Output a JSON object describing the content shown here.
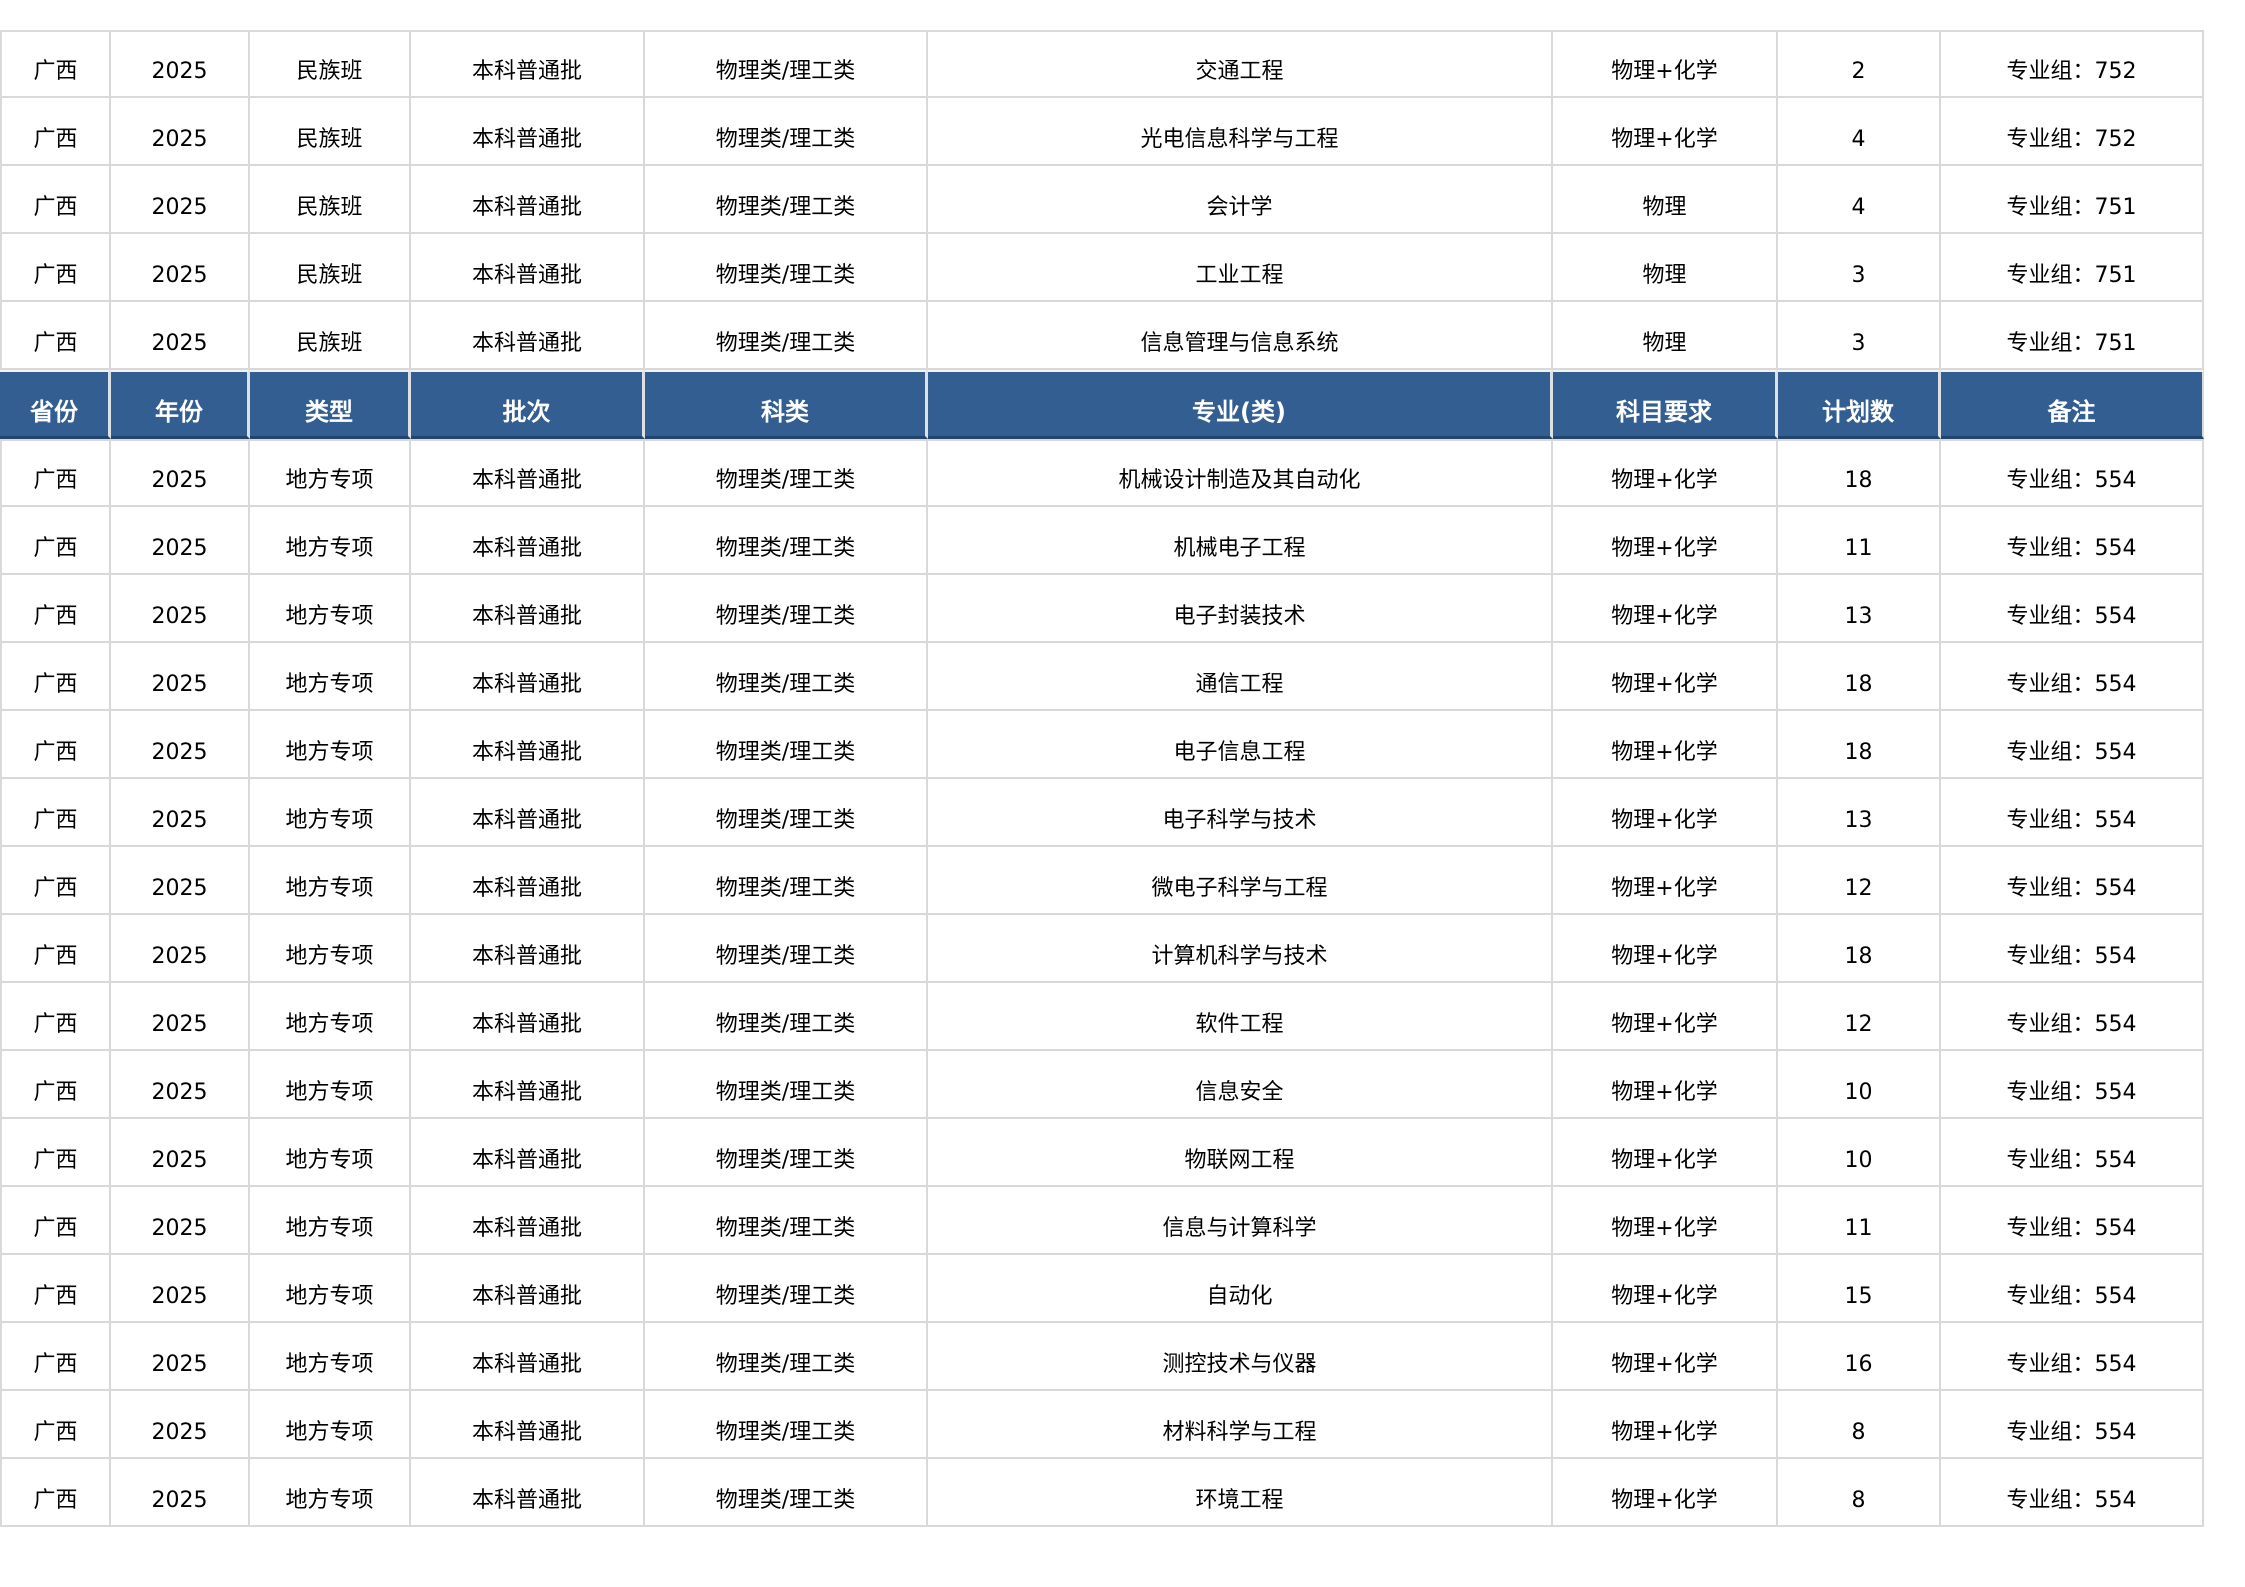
{
  "colors": {
    "header_bg": "#325e92",
    "header_text": "#ffffff",
    "grid_line": "#d9d9d9",
    "body_text": "#000000"
  },
  "columns": [
    "省份",
    "年份",
    "类型",
    "批次",
    "科类",
    "专业(类)",
    "科目要求",
    "计划数",
    "备注"
  ],
  "top_rows": [
    {
      "province": "广西",
      "year": "2025",
      "type": "民族班",
      "batch": "本科普通批",
      "subject_class": "物理类/理工类",
      "major": "交通工程",
      "requirement": "物理+化学",
      "plan": "2",
      "note": "专业组：752"
    },
    {
      "province": "广西",
      "year": "2025",
      "type": "民族班",
      "batch": "本科普通批",
      "subject_class": "物理类/理工类",
      "major": "光电信息科学与工程",
      "requirement": "物理+化学",
      "plan": "4",
      "note": "专业组：752"
    },
    {
      "province": "广西",
      "year": "2025",
      "type": "民族班",
      "batch": "本科普通批",
      "subject_class": "物理类/理工类",
      "major": "会计学",
      "requirement": "物理",
      "plan": "4",
      "note": "专业组：751"
    },
    {
      "province": "广西",
      "year": "2025",
      "type": "民族班",
      "batch": "本科普通批",
      "subject_class": "物理类/理工类",
      "major": "工业工程",
      "requirement": "物理",
      "plan": "3",
      "note": "专业组：751"
    },
    {
      "province": "广西",
      "year": "2025",
      "type": "民族班",
      "batch": "本科普通批",
      "subject_class": "物理类/理工类",
      "major": "信息管理与信息系统",
      "requirement": "物理",
      "plan": "3",
      "note": "专业组：751"
    }
  ],
  "bottom_rows": [
    {
      "province": "广西",
      "year": "2025",
      "type": "地方专项",
      "batch": "本科普通批",
      "subject_class": "物理类/理工类",
      "major": "机械设计制造及其自动化",
      "requirement": "物理+化学",
      "plan": "18",
      "note": "专业组：554"
    },
    {
      "province": "广西",
      "year": "2025",
      "type": "地方专项",
      "batch": "本科普通批",
      "subject_class": "物理类/理工类",
      "major": "机械电子工程",
      "requirement": "物理+化学",
      "plan": "11",
      "note": "专业组：554"
    },
    {
      "province": "广西",
      "year": "2025",
      "type": "地方专项",
      "batch": "本科普通批",
      "subject_class": "物理类/理工类",
      "major": "电子封装技术",
      "requirement": "物理+化学",
      "plan": "13",
      "note": "专业组：554"
    },
    {
      "province": "广西",
      "year": "2025",
      "type": "地方专项",
      "batch": "本科普通批",
      "subject_class": "物理类/理工类",
      "major": "通信工程",
      "requirement": "物理+化学",
      "plan": "18",
      "note": "专业组：554"
    },
    {
      "province": "广西",
      "year": "2025",
      "type": "地方专项",
      "batch": "本科普通批",
      "subject_class": "物理类/理工类",
      "major": "电子信息工程",
      "requirement": "物理+化学",
      "plan": "18",
      "note": "专业组：554"
    },
    {
      "province": "广西",
      "year": "2025",
      "type": "地方专项",
      "batch": "本科普通批",
      "subject_class": "物理类/理工类",
      "major": "电子科学与技术",
      "requirement": "物理+化学",
      "plan": "13",
      "note": "专业组：554"
    },
    {
      "province": "广西",
      "year": "2025",
      "type": "地方专项",
      "batch": "本科普通批",
      "subject_class": "物理类/理工类",
      "major": "微电子科学与工程",
      "requirement": "物理+化学",
      "plan": "12",
      "note": "专业组：554"
    },
    {
      "province": "广西",
      "year": "2025",
      "type": "地方专项",
      "batch": "本科普通批",
      "subject_class": "物理类/理工类",
      "major": "计算机科学与技术",
      "requirement": "物理+化学",
      "plan": "18",
      "note": "专业组：554"
    },
    {
      "province": "广西",
      "year": "2025",
      "type": "地方专项",
      "batch": "本科普通批",
      "subject_class": "物理类/理工类",
      "major": "软件工程",
      "requirement": "物理+化学",
      "plan": "12",
      "note": "专业组：554"
    },
    {
      "province": "广西",
      "year": "2025",
      "type": "地方专项",
      "batch": "本科普通批",
      "subject_class": "物理类/理工类",
      "major": "信息安全",
      "requirement": "物理+化学",
      "plan": "10",
      "note": "专业组：554"
    },
    {
      "province": "广西",
      "year": "2025",
      "type": "地方专项",
      "batch": "本科普通批",
      "subject_class": "物理类/理工类",
      "major": "物联网工程",
      "requirement": "物理+化学",
      "plan": "10",
      "note": "专业组：554"
    },
    {
      "province": "广西",
      "year": "2025",
      "type": "地方专项",
      "batch": "本科普通批",
      "subject_class": "物理类/理工类",
      "major": "信息与计算科学",
      "requirement": "物理+化学",
      "plan": "11",
      "note": "专业组：554"
    },
    {
      "province": "广西",
      "year": "2025",
      "type": "地方专项",
      "batch": "本科普通批",
      "subject_class": "物理类/理工类",
      "major": "自动化",
      "requirement": "物理+化学",
      "plan": "15",
      "note": "专业组：554"
    },
    {
      "province": "广西",
      "year": "2025",
      "type": "地方专项",
      "batch": "本科普通批",
      "subject_class": "物理类/理工类",
      "major": "测控技术与仪器",
      "requirement": "物理+化学",
      "plan": "16",
      "note": "专业组：554"
    },
    {
      "province": "广西",
      "year": "2025",
      "type": "地方专项",
      "batch": "本科普通批",
      "subject_class": "物理类/理工类",
      "major": "材料科学与工程",
      "requirement": "物理+化学",
      "plan": "8",
      "note": "专业组：554"
    },
    {
      "province": "广西",
      "year": "2025",
      "type": "地方专项",
      "batch": "本科普通批",
      "subject_class": "物理类/理工类",
      "major": "环境工程",
      "requirement": "物理+化学",
      "plan": "8",
      "note": "专业组：554"
    }
  ]
}
